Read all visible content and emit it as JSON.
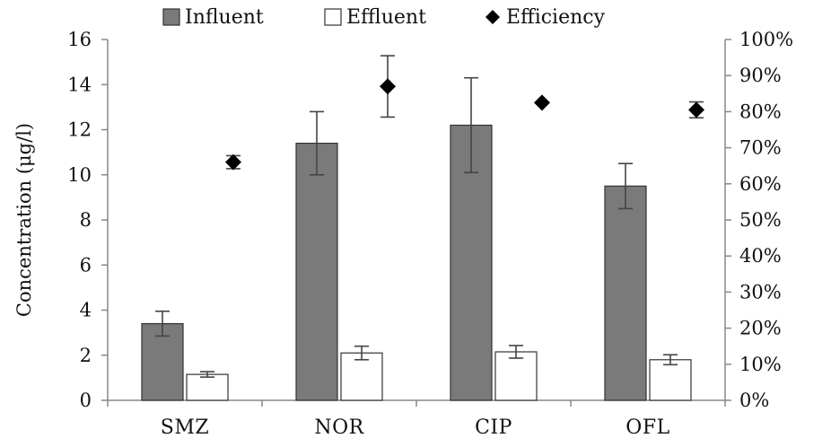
{
  "chart_data": {
    "type": "bar",
    "title": "",
    "xlabel": "",
    "ylabel": "Concentration (μg/l)",
    "categories": [
      "SMZ",
      "NOR",
      "CIP",
      "OFL"
    ],
    "ylim": [
      0,
      16
    ],
    "y_ticks": [
      "0",
      "2",
      "4",
      "6",
      "8",
      "10",
      "12",
      "14",
      "16"
    ],
    "y2lim": [
      0,
      100
    ],
    "y2_ticks": [
      "0%",
      "10%",
      "20%",
      "30%",
      "40%",
      "50%",
      "60%",
      "70%",
      "80%",
      "90%",
      "100%"
    ],
    "legend_position": "top",
    "grid": false,
    "series": [
      {
        "name": "Influent",
        "kind": "bar",
        "axis": "left",
        "color": "#7a7a7a",
        "values": [
          3.4,
          11.4,
          12.2,
          9.5
        ],
        "error": [
          0.55,
          1.4,
          2.1,
          1.0
        ]
      },
      {
        "name": "Effluent",
        "kind": "bar",
        "axis": "left",
        "color": "#ffffff",
        "values": [
          1.15,
          2.1,
          2.15,
          1.8
        ],
        "error": [
          0.12,
          0.3,
          0.28,
          0.22
        ]
      },
      {
        "name": "Efficiency",
        "kind": "point",
        "axis": "right",
        "color": "#000000",
        "values": [
          66,
          87,
          82.5,
          80.5
        ],
        "error": [
          1.8,
          8.5,
          0,
          2.2
        ]
      }
    ]
  }
}
